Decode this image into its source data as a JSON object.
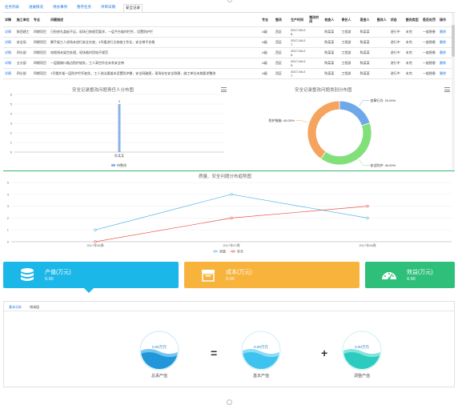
{
  "tabs": [
    {
      "label": "任务列表",
      "active": false
    },
    {
      "label": "进展情况",
      "active": false
    },
    {
      "label": "待办事项",
      "active": false
    },
    {
      "label": "暂存任务",
      "active": false
    },
    {
      "label": "评审日期",
      "active": false
    },
    {
      "label": "安全记录",
      "active": true
    }
  ],
  "table": {
    "headers": [
      "详情",
      "施工单位",
      "专业",
      "问题描述",
      "",
      "",
      "",
      "专业",
      "整改",
      "生产时间",
      "整改时间",
      "检查人",
      "责任人",
      "复查人",
      "整改人",
      "状态",
      "整改类型",
      "是否处罚",
      "操作"
    ],
    "rows": [
      [
        "详情",
        "陕西建工",
        "四期项目",
        "已检修孔盖板不足，现场已按规范要求，一层平台临时栏杆，设置防护栏",
        "",
        "",
        "",
        "A级",
        "西区",
        "2017-06-08",
        "",
        "陈某某",
        "工程部",
        "陈某某",
        "",
        "进行中",
        "未完",
        "一般隐患",
        "删除"
      ],
      [
        "详情",
        "安全局",
        "四期项目",
        "脚手架工人进场未进行安全交底，3号楼进行主体施工作业，安全带不合格",
        "",
        "",
        "",
        "A级",
        "西区",
        "2017-06-07",
        "",
        "陈某某",
        "工程部",
        "陈某某",
        "",
        "进行中",
        "未完",
        "一般隐患",
        "删除"
      ],
      [
        "详情",
        "四分部",
        "四期项目",
        "电缆线未架空处理，现场临时用电不规范",
        "",
        "",
        "",
        "A级",
        "西区",
        "2017-06-06",
        "",
        "陈某某",
        "工程部",
        "陈某某",
        "",
        "进行中",
        "未完",
        "一般隐患",
        "删除"
      ],
      [
        "详情",
        "五分部",
        "四期项目",
        "一层楼梯口临边防护缺失，工人高空作业未系安全带",
        "",
        "",
        "",
        "A级",
        "西区",
        "2017-06-05",
        "",
        "陈某某",
        "工程部",
        "陈某某",
        "",
        "进行中",
        "未完",
        "一般隐患",
        "删除"
      ],
      [
        "详情",
        "四分部",
        "四期项目",
        "1号楼外架一层防护栏杆缺失，工人进出通道未设置防护棚，安全网破损，现场存在安全隐患，施工单位未按要求整改",
        "",
        "",
        "",
        "A级",
        "西区",
        "2017-06-07",
        "",
        "陈某某",
        "工程部",
        "陈某某",
        "",
        "进行中",
        "未完",
        "一般隐患",
        "删除"
      ]
    ]
  },
  "chart_left": {
    "title": "安全记录整改问题责任人分布图",
    "menu_icon": "menu-icon"
  },
  "chart_right": {
    "title": "安全记录整改问题类别分布图",
    "menu_icon": "menu-icon"
  },
  "chart_line": {
    "title": "质量、安全问题分布趋势图"
  },
  "chart_data": [
    {
      "type": "bar",
      "title": "安全记录整改问题责任人分布图",
      "categories": [
        "陈某某"
      ],
      "series": [
        {
          "name": "待整改",
          "values": [
            5
          ]
        }
      ],
      "data_labels": [
        "5"
      ],
      "ylim": [
        0,
        6
      ],
      "yticks": [
        0,
        1,
        2,
        3,
        4,
        5,
        6
      ],
      "color": "#8ab4e8",
      "legend": "bottom"
    },
    {
      "type": "pie",
      "title": "安全记录整改问题类别分布图",
      "slices": [
        {
          "label": "违章行为",
          "value": 20,
          "display": "违章行为: 20.00%",
          "color": "#6ea8e8"
        },
        {
          "label": "安全防护",
          "value": 40,
          "display": "安全防护: 40.00%",
          "color": "#82e07a"
        },
        {
          "label": "防护措施",
          "value": 40,
          "display": "防护措施: 40.00%",
          "color": "#f5a460"
        }
      ]
    },
    {
      "type": "line",
      "title": "质量、安全问题分布趋势图",
      "categories": [
        "2017年06周",
        "2017年07周",
        "2017年08周"
      ],
      "series": [
        {
          "name": "质量",
          "values": [
            1,
            4,
            2
          ],
          "color": "#4fb5e6"
        },
        {
          "name": "安全",
          "values": [
            0,
            2,
            3
          ],
          "color": "#e8564e"
        }
      ],
      "ylim": [
        0,
        5
      ],
      "yticks": [
        0,
        1,
        2,
        3,
        4,
        5
      ],
      "legend": "bottom"
    }
  ],
  "cards": [
    {
      "label": "产值(万元)",
      "value": "0.00",
      "icon": "database-icon",
      "color": "#1bb7e9"
    },
    {
      "label": "成本(万元)",
      "value": "0.00",
      "icon": "box-icon",
      "color": "#f7b33c"
    },
    {
      "label": "效益(万元)",
      "value": "0.00",
      "icon": "gauge-icon",
      "color": "#2ebf7b"
    }
  ],
  "subtabs": [
    {
      "label": "基本分析",
      "active": true
    },
    {
      "label": "增减值",
      "active": false
    }
  ],
  "bubbles": [
    {
      "value": "0.00万元",
      "label": "总承产值"
    },
    {
      "value": "0.00万元",
      "label": "基本产值"
    },
    {
      "value": "0.00万元",
      "label": "调整产值"
    }
  ],
  "operators": [
    "=",
    "+"
  ]
}
